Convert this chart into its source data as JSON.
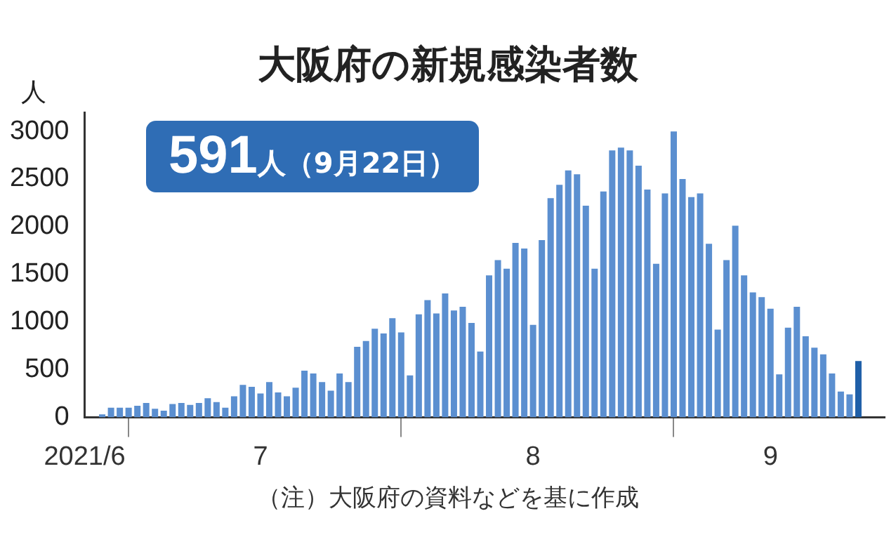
{
  "chart_data": {
    "type": "bar",
    "title": "大阪府の新規感染者数",
    "ylabel": "人",
    "annotations": [
      "591人（9月22日）",
      "（注）大阪府の資料などを基に作成"
    ],
    "x": [
      "2021-06-28",
      "2021-06-29",
      "2021-06-30",
      "2021-07-01",
      "2021-07-02",
      "2021-07-03",
      "2021-07-04",
      "2021-07-05",
      "2021-07-06",
      "2021-07-07",
      "2021-07-08",
      "2021-07-09",
      "2021-07-10",
      "2021-07-11",
      "2021-07-12",
      "2021-07-13",
      "2021-07-14",
      "2021-07-15",
      "2021-07-16",
      "2021-07-17",
      "2021-07-18",
      "2021-07-19",
      "2021-07-20",
      "2021-07-21",
      "2021-07-22",
      "2021-07-23",
      "2021-07-24",
      "2021-07-25",
      "2021-07-26",
      "2021-07-27",
      "2021-07-28",
      "2021-07-29",
      "2021-07-30",
      "2021-07-31",
      "2021-08-01",
      "2021-08-02",
      "2021-08-03",
      "2021-08-04",
      "2021-08-05",
      "2021-08-06",
      "2021-08-07",
      "2021-08-08",
      "2021-08-09",
      "2021-08-10",
      "2021-08-11",
      "2021-08-12",
      "2021-08-13",
      "2021-08-14",
      "2021-08-15",
      "2021-08-16",
      "2021-08-17",
      "2021-08-18",
      "2021-08-19",
      "2021-08-20",
      "2021-08-21",
      "2021-08-22",
      "2021-08-23",
      "2021-08-24",
      "2021-08-25",
      "2021-08-26",
      "2021-08-27",
      "2021-08-28",
      "2021-08-29",
      "2021-08-30",
      "2021-08-31",
      "2021-09-01",
      "2021-09-02",
      "2021-09-03",
      "2021-09-04",
      "2021-09-05",
      "2021-09-06",
      "2021-09-07",
      "2021-09-08",
      "2021-09-09",
      "2021-09-10",
      "2021-09-11",
      "2021-09-12",
      "2021-09-13",
      "2021-09-14",
      "2021-09-15",
      "2021-09-16",
      "2021-09-17",
      "2021-09-18",
      "2021-09-19",
      "2021-09-20",
      "2021-09-21",
      "2021-09-22"
    ],
    "values": [
      30,
      100,
      100,
      100,
      120,
      150,
      90,
      70,
      140,
      150,
      130,
      150,
      200,
      160,
      100,
      220,
      340,
      320,
      250,
      370,
      260,
      220,
      310,
      490,
      460,
      370,
      280,
      460,
      370,
      740,
      800,
      930,
      880,
      1040,
      890,
      440,
      1080,
      1230,
      1090,
      1300,
      1120,
      1160,
      990,
      690,
      1490,
      1650,
      1560,
      1830,
      1770,
      970,
      1860,
      2300,
      2440,
      2590,
      2550,
      2220,
      1560,
      2370,
      2800,
      2830,
      2800,
      2640,
      2390,
      1610,
      2350,
      3000,
      2500,
      2310,
      2350,
      1820,
      920,
      1650,
      2010,
      1490,
      1310,
      1260,
      1140,
      450,
      940,
      1160,
      850,
      730,
      660,
      460,
      270,
      240,
      591
    ],
    "colors": [
      "#5b8fd0",
      "#5b8fd0",
      "#5b8fd0",
      "#5b8fd0",
      "#5b8fd0",
      "#5b8fd0",
      "#5b8fd0",
      "#5b8fd0",
      "#5b8fd0",
      "#5b8fd0",
      "#5b8fd0",
      "#5b8fd0",
      "#5b8fd0",
      "#5b8fd0",
      "#5b8fd0",
      "#5b8fd0",
      "#5b8fd0",
      "#5b8fd0",
      "#5b8fd0",
      "#5b8fd0",
      "#5b8fd0",
      "#5b8fd0",
      "#5b8fd0",
      "#5b8fd0",
      "#5b8fd0",
      "#5b8fd0",
      "#5b8fd0",
      "#5b8fd0",
      "#5b8fd0",
      "#5b8fd0",
      "#5b8fd0",
      "#5b8fd0",
      "#5b8fd0",
      "#5b8fd0",
      "#5b8fd0",
      "#5b8fd0",
      "#5b8fd0",
      "#5b8fd0",
      "#5b8fd0",
      "#5b8fd0",
      "#5b8fd0",
      "#5b8fd0",
      "#5b8fd0",
      "#5b8fd0",
      "#5b8fd0",
      "#5b8fd0",
      "#5b8fd0",
      "#5b8fd0",
      "#5b8fd0",
      "#5b8fd0",
      "#5b8fd0",
      "#5b8fd0",
      "#5b8fd0",
      "#5b8fd0",
      "#5b8fd0",
      "#5b8fd0",
      "#5b8fd0",
      "#5b8fd0",
      "#5b8fd0",
      "#5b8fd0",
      "#5b8fd0",
      "#5b8fd0",
      "#5b8fd0",
      "#5b8fd0",
      "#5b8fd0",
      "#5b8fd0",
      "#5b8fd0",
      "#5b8fd0",
      "#5b8fd0",
      "#5b8fd0",
      "#5b8fd0",
      "#5b8fd0",
      "#5b8fd0",
      "#5b8fd0",
      "#5b8fd0",
      "#5b8fd0",
      "#5b8fd0",
      "#5b8fd0",
      "#5b8fd0",
      "#5b8fd0",
      "#5b8fd0",
      "#5b8fd0",
      "#5b8fd0",
      "#5b8fd0",
      "#5b8fd0",
      "#5b8fd0",
      "#1f5fa8"
    ],
    "xlim": [
      "2021-06-26",
      "2021-09-25"
    ],
    "xticks": [
      {
        "value": "2021-06-26",
        "label": "2021/6"
      },
      {
        "value": "2021-07-01",
        "label": null
      },
      {
        "value": "2021-07-16",
        "label": "7"
      },
      {
        "value": "2021-08-01",
        "label": null
      },
      {
        "value": "2021-08-16",
        "label": "8"
      },
      {
        "value": "2021-09-01",
        "label": null
      },
      {
        "value": "2021-09-12",
        "label": "9"
      }
    ],
    "ylim": [
      0,
      3200
    ],
    "yticks": [
      0,
      500,
      1000,
      1500,
      2000,
      2500,
      3000
    ]
  }
}
